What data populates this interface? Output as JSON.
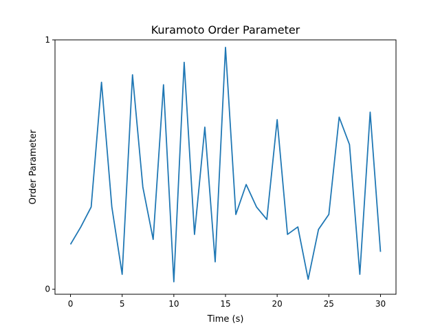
{
  "chart_data": {
    "type": "line",
    "title": "Kuramoto Order Parameter",
    "xlabel": "Time (s)",
    "ylabel": "Order Parameter",
    "xlim": [
      -1.5,
      31.5
    ],
    "ylim": [
      -0.02,
      1.0
    ],
    "x_ticks": [
      0,
      5,
      10,
      15,
      20,
      25,
      30
    ],
    "x_tick_labels": [
      "0",
      "5",
      "10",
      "15",
      "20",
      "25",
      "30"
    ],
    "y_ticks": [
      0,
      1
    ],
    "y_tick_labels": [
      "0",
      "1"
    ],
    "grid": false,
    "series": [
      {
        "color": "#1f77b4",
        "x": [
          0,
          1,
          2,
          3,
          4,
          5,
          6,
          7,
          8,
          9,
          10,
          11,
          12,
          13,
          14,
          15,
          16,
          17,
          18,
          19,
          20,
          21,
          22,
          23,
          24,
          25,
          26,
          27,
          28,
          29,
          30
        ],
        "y": [
          0.18,
          0.25,
          0.33,
          0.83,
          0.33,
          0.06,
          0.86,
          0.41,
          0.2,
          0.82,
          0.03,
          0.91,
          0.22,
          0.65,
          0.11,
          0.97,
          0.3,
          0.42,
          0.33,
          0.28,
          0.68,
          0.22,
          0.25,
          0.04,
          0.24,
          0.3,
          0.69,
          0.58,
          0.06,
          0.71,
          0.15
        ]
      }
    ]
  }
}
